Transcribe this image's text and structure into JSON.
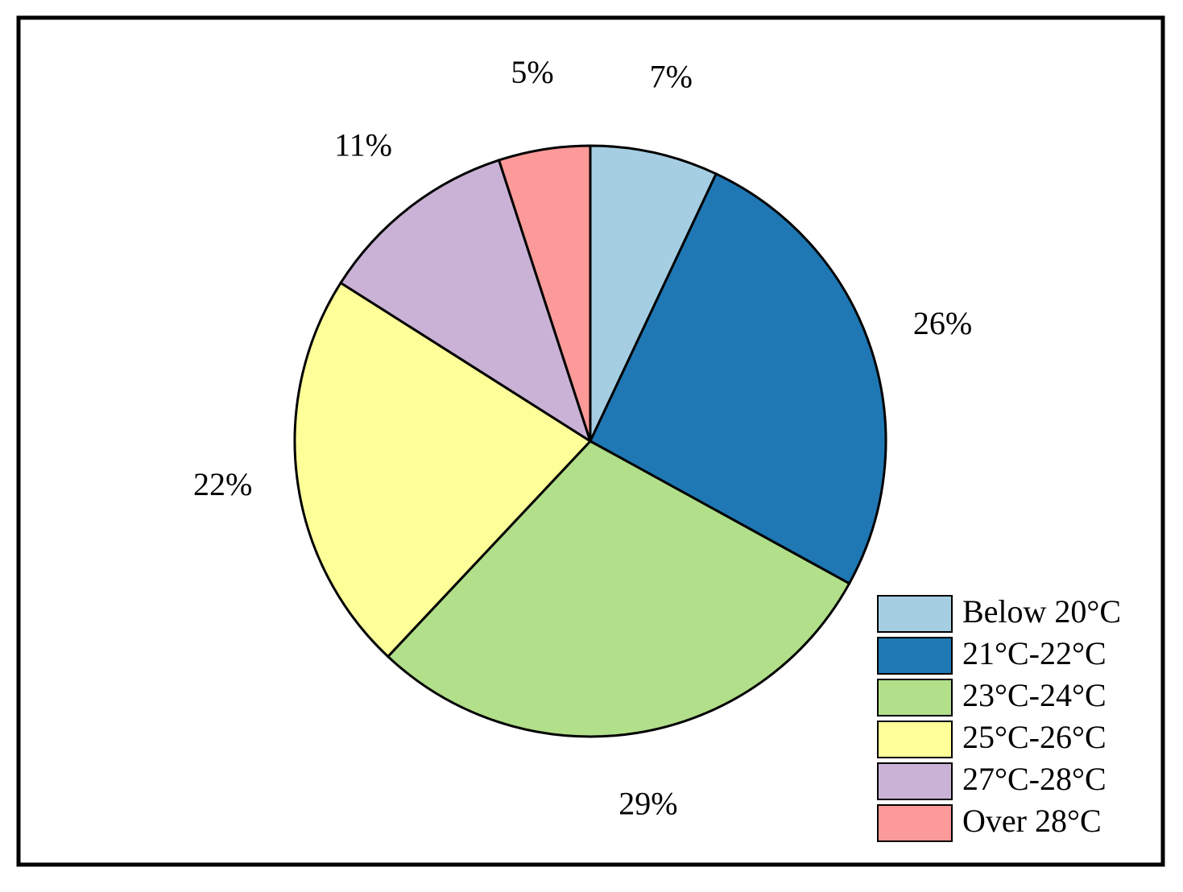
{
  "chart_data": {
    "type": "pie",
    "categories": [
      "Below 20°C",
      "21°C-22°C",
      "23°C-24°C",
      "25°C-26°C",
      "27°C-28°C",
      "Over 28°C"
    ],
    "values": [
      7,
      26,
      29,
      22,
      11,
      5
    ],
    "value_labels": [
      "7%",
      "26%",
      "29%",
      "22%",
      "11%",
      "5%"
    ],
    "colors": [
      "#a6cee3",
      "#1f78b4",
      "#b2df8a",
      "#ffff99",
      "#cab2d6",
      "#fb9a99"
    ],
    "legend": "lower right"
  }
}
